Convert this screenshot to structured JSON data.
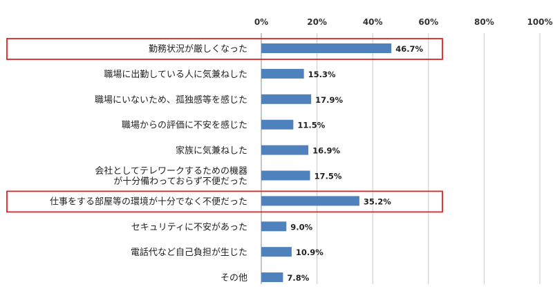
{
  "chart_data": {
    "type": "bar",
    "orientation": "horizontal",
    "categories": [
      [
        "勤務状況が厳しくなった"
      ],
      [
        "職場に出勤している人に気兼ねした"
      ],
      [
        "職場にいないため、孤独感等を感じた"
      ],
      [
        "職場からの評価に不安を感じた"
      ],
      [
        "家族に気兼ねした"
      ],
      [
        "会社としてテレワークするための機器",
        "が十分備わっておらず不便だった"
      ],
      [
        "仕事をする部屋等の環境が十分でなく不便だった"
      ],
      [
        "セキュリティに不安があった"
      ],
      [
        "電話代など自己負担が生じた"
      ],
      [
        "その他"
      ]
    ],
    "values": [
      46.7,
      15.3,
      17.9,
      11.5,
      16.9,
      17.5,
      35.2,
      9.0,
      10.9,
      7.8
    ],
    "value_labels": [
      "46.7%",
      "15.3%",
      "17.9%",
      "11.5%",
      "16.9%",
      "17.5%",
      "35.2%",
      "9.0%",
      "10.9%",
      "7.8%"
    ],
    "x_ticks": [
      "0%",
      "20%",
      "40%",
      "60%",
      "80%",
      "100%"
    ],
    "xlim": [
      0,
      100
    ],
    "grid": true,
    "highlighted_categories": [
      0,
      6
    ],
    "colors": {
      "bar": "#4f81bd",
      "grid": "#c8c8c8",
      "highlight": "#e02020"
    }
  }
}
